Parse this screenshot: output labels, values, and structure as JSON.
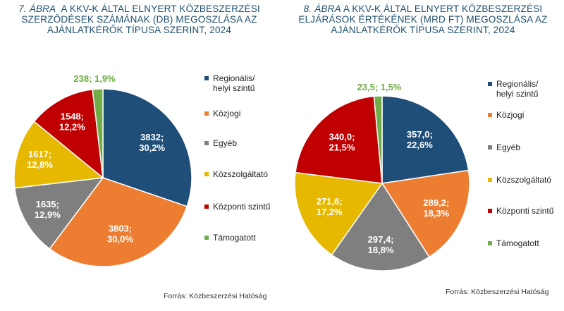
{
  "chart_data": [
    {
      "type": "pie",
      "figure_number": "7. ÁBRA",
      "title_lines": [
        "A KKV-K ÁLTAL ELNYERT KÖZBESZERZÉSI",
        "SZERZŐDÉSEK SZÁMÁNAK (DB) MEGOSZLÁSA AZ",
        "AJÁNLATKÉRŐK TÍPUSA SZERINT, 2024"
      ],
      "categories": [
        "Regionális/ helyi szintű",
        "Közjogi",
        "Egyéb",
        "Közszolgáltató",
        "Központi szintű",
        "Támogatott"
      ],
      "values": [
        3832,
        3803,
        1635,
        1617,
        1548,
        238
      ],
      "data_labels": [
        "3832;\n30,2%",
        "3803;\n30,0%",
        "1635;\n12,9%",
        "1617;\n12,8%",
        "1548;\n12,2%",
        "238; 1,9%"
      ],
      "colors": [
        "#1f4e79",
        "#ed7d31",
        "#7f7f7f",
        "#e6b800",
        "#c00000",
        "#70ad47"
      ],
      "source": "Forrás: Közbeszerzési Hatóság"
    },
    {
      "type": "pie",
      "figure_number": "8. ÁBRA",
      "title_lines": [
        "A KKV-K ÁLTAL ELNYERT KÖZBESZERZÉSI",
        "ELJÁRÁSOK ÉRTÉKÉNEK  (MRD FT) MEGOSZLÁSA AZ",
        "AJÁNLATKÉRŐK TÍPUSA SZERINT, 2024"
      ],
      "categories": [
        "Regionális/ helyi szintű",
        "Közjogi",
        "Egyéb",
        "Közszolgáltató",
        "Központi szintű",
        "Támogatott"
      ],
      "values": [
        357.0,
        289.2,
        297.4,
        271.6,
        340.0,
        23.5
      ],
      "data_labels": [
        "357,0;\n22,6%",
        "289,2;\n18,3%",
        "297,4;\n18,8%",
        "271,6;\n17,2%",
        "340,0;\n21,5%",
        "23,5; 1,5%"
      ],
      "colors": [
        "#1f4e79",
        "#ed7d31",
        "#7f7f7f",
        "#e6b800",
        "#c00000",
        "#70ad47"
      ],
      "source": "Forrás: Közbeszerzési Hatóság"
    }
  ]
}
